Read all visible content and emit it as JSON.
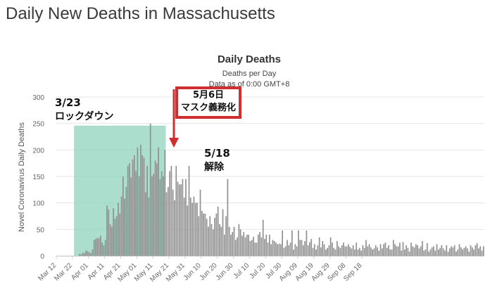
{
  "page": {
    "title": "Daily New Deaths in Massachusetts"
  },
  "annotations": {
    "lockdown": {
      "date": "3/23",
      "label": "ロックダウン"
    },
    "mask": {
      "date": "5月6日",
      "label": "マスク義務化"
    },
    "lift": {
      "date": "5/18",
      "label": "解除"
    }
  },
  "colors": {
    "bars": "#909090",
    "shade": "#8fd3bc",
    "callout": "#d12f2f",
    "grid": "#e6e6e6"
  },
  "chart_data": {
    "type": "bar",
    "title": "Daily Deaths",
    "subtitle": "Deaths per Day",
    "subtitle2": "Data as of 0:00 GMT+8",
    "ylabel": "Novel Coronavirus Daily Deaths",
    "xlabel": "",
    "ylim": [
      0,
      300
    ],
    "yticks": [
      0,
      50,
      100,
      150,
      200,
      250,
      300
    ],
    "x_tick_labels": [
      "Mar 12",
      "Mar 22",
      "Apr 01",
      "Apr 11",
      "Apr 21",
      "May 01",
      "May 11",
      "May 21",
      "May 31",
      "Jun 10",
      "Jun 20",
      "Jun 30",
      "Jul 10",
      "Jul 20",
      "Jul 30",
      "Aug 09",
      "Aug 19",
      "Aug 29",
      "Sep 08",
      "Sep 18"
    ],
    "x_start": "Mar 12",
    "highlight_range": [
      "Mar 23",
      "May 18"
    ],
    "values": [
      0,
      0,
      0,
      0,
      0,
      0,
      0,
      0,
      0,
      0,
      0,
      0,
      0,
      0,
      4,
      3,
      6,
      5,
      10,
      9,
      7,
      5,
      12,
      30,
      32,
      34,
      33,
      38,
      25,
      20,
      30,
      95,
      88,
      60,
      55,
      90,
      70,
      75,
      100,
      80,
      112,
      150,
      108,
      130,
      170,
      175,
      148,
      182,
      190,
      160,
      205,
      150,
      210,
      190,
      185,
      120,
      170,
      110,
      250,
      150,
      155,
      180,
      175,
      205,
      145,
      160,
      150,
      200,
      120,
      130,
      160,
      170,
      125,
      105,
      170,
      140,
      135,
      135,
      145,
      110,
      145,
      95,
      170,
      110,
      100,
      112,
      100,
      100,
      75,
      125,
      85,
      80,
      80,
      70,
      55,
      75,
      60,
      50,
      72,
      80,
      93,
      60,
      55,
      88,
      40,
      75,
      145,
      55,
      40,
      45,
      55,
      30,
      35,
      60,
      50,
      38,
      45,
      35,
      40,
      40,
      28,
      30,
      36,
      25,
      25,
      40,
      45,
      35,
      68,
      32,
      40,
      25,
      40,
      22,
      30,
      28,
      25,
      22,
      23,
      22,
      48,
      15,
      18,
      30,
      20,
      25,
      48,
      12,
      22,
      18,
      48,
      30,
      30,
      20,
      28,
      48,
      20,
      26,
      32,
      15,
      22,
      12,
      20,
      35,
      16,
      28,
      22,
      12,
      15,
      20,
      35,
      25,
      15,
      12,
      28,
      18,
      15,
      20,
      25,
      18,
      18,
      22,
      17,
      14,
      20,
      12,
      25,
      12,
      15,
      10,
      20,
      15,
      30,
      18,
      22,
      16,
      12,
      14,
      20,
      16,
      10,
      22,
      14,
      22,
      25,
      15,
      20,
      12,
      12,
      30,
      22,
      18,
      18,
      25,
      10,
      26,
      12,
      20,
      15,
      8,
      25,
      18,
      16,
      22,
      20,
      14,
      18,
      28,
      10,
      12,
      24,
      8,
      12,
      16,
      18,
      10,
      22,
      12,
      15,
      20,
      14,
      10,
      20,
      8,
      14,
      18,
      16,
      20,
      8,
      12,
      22,
      16,
      12,
      15,
      18,
      14,
      8,
      20,
      16,
      12,
      20,
      24,
      14,
      18,
      10,
      18
    ]
  }
}
